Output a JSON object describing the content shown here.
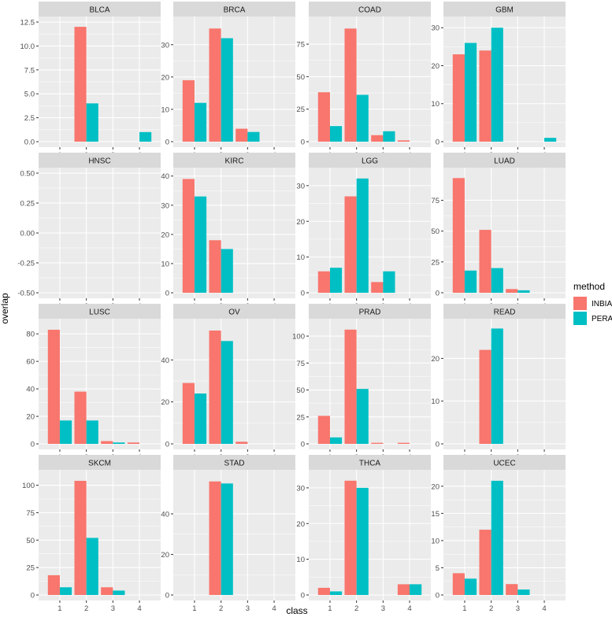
{
  "chart_data": {
    "type": "bar",
    "layout": "facet-grid 4x4",
    "xlabel": "class",
    "ylabel": "overlap",
    "categories": [
      "1",
      "2",
      "3",
      "4"
    ],
    "legend": {
      "title": "method",
      "position": "right",
      "entries": [
        {
          "name": "INBIA",
          "color": "#F8766D"
        },
        {
          "name": "PERA",
          "color": "#00BFC4"
        }
      ]
    },
    "colors": {
      "panel_bg": "#EBEBEB",
      "strip_bg": "#D9D9D9",
      "grid": "#FFFFFF"
    },
    "facets": [
      {
        "name": "BLCA",
        "ylim": [
          0,
          12.5
        ],
        "yticks": [
          0,
          2.5,
          5,
          7.5,
          10,
          12.5
        ],
        "ytick_labels": [
          "0.0",
          "2.5",
          "5.0",
          "7.5",
          "10.0",
          "12.5"
        ],
        "series": [
          {
            "name": "INBIA",
            "values": [
              null,
              12,
              null,
              null
            ]
          },
          {
            "name": "PERA",
            "values": [
              null,
              4,
              null,
              1
            ]
          }
        ]
      },
      {
        "name": "BRCA",
        "ylim": [
          0,
          37
        ],
        "yticks": [
          0,
          10,
          20,
          30
        ],
        "ytick_labels": [
          "0",
          "10",
          "20",
          "30"
        ],
        "series": [
          {
            "name": "INBIA",
            "values": [
              19,
              35,
              4,
              null
            ]
          },
          {
            "name": "PERA",
            "values": [
              12,
              32,
              3,
              null
            ]
          }
        ]
      },
      {
        "name": "COAD",
        "ylim": [
          0,
          92
        ],
        "yticks": [
          0,
          25,
          50,
          75
        ],
        "ytick_labels": [
          "0",
          "25",
          "50",
          "75"
        ],
        "series": [
          {
            "name": "INBIA",
            "values": [
              38,
              87,
              5,
              1
            ]
          },
          {
            "name": "PERA",
            "values": [
              12,
              36,
              8,
              null
            ]
          }
        ]
      },
      {
        "name": "GBM",
        "ylim": [
          0,
          31.5
        ],
        "yticks": [
          0,
          10,
          20,
          30
        ],
        "ytick_labels": [
          "0",
          "10",
          "20",
          "30"
        ],
        "series": [
          {
            "name": "INBIA",
            "values": [
              23,
              24,
              null,
              null
            ]
          },
          {
            "name": "PERA",
            "values": [
              26,
              30,
              null,
              1
            ]
          }
        ]
      },
      {
        "name": "HNSC",
        "ylim": [
          -0.5,
          0.5
        ],
        "yticks": [
          -0.5,
          -0.25,
          0,
          0.25,
          0.5
        ],
        "ytick_labels": [
          "-0.50",
          "-0.25",
          "0.00",
          "0.25",
          "0.50"
        ],
        "series": [
          {
            "name": "INBIA",
            "values": [
              null,
              null,
              null,
              null
            ]
          },
          {
            "name": "PERA",
            "values": [
              null,
              null,
              null,
              null
            ]
          }
        ]
      },
      {
        "name": "KIRC",
        "ylim": [
          0,
          41
        ],
        "yticks": [
          0,
          10,
          20,
          30,
          40
        ],
        "ytick_labels": [
          "0",
          "10",
          "20",
          "30",
          "40"
        ],
        "series": [
          {
            "name": "INBIA",
            "values": [
              39,
              18,
              null,
              null
            ]
          },
          {
            "name": "PERA",
            "values": [
              33,
              15,
              null,
              null
            ]
          }
        ]
      },
      {
        "name": "LGG",
        "ylim": [
          0,
          33.5
        ],
        "yticks": [
          0,
          10,
          20,
          30
        ],
        "ytick_labels": [
          "0",
          "10",
          "20",
          "30"
        ],
        "series": [
          {
            "name": "INBIA",
            "values": [
              6,
              27,
              3,
              null
            ]
          },
          {
            "name": "PERA",
            "values": [
              7,
              32,
              6,
              null
            ]
          }
        ]
      },
      {
        "name": "LUAD",
        "ylim": [
          0,
          97
        ],
        "yticks": [
          0,
          25,
          50,
          75
        ],
        "ytick_labels": [
          "0",
          "25",
          "50",
          "75"
        ],
        "series": [
          {
            "name": "INBIA",
            "values": [
              93,
              51,
              3,
              null
            ]
          },
          {
            "name": "PERA",
            "values": [
              18,
              20,
              2,
              null
            ]
          }
        ]
      },
      {
        "name": "LUSC",
        "ylim": [
          0,
          87
        ],
        "yticks": [
          0,
          20,
          40,
          60,
          80
        ],
        "ytick_labels": [
          "0",
          "20",
          "40",
          "60",
          "80"
        ],
        "series": [
          {
            "name": "INBIA",
            "values": [
              83,
              38,
              2,
              1
            ]
          },
          {
            "name": "PERA",
            "values": [
              17,
              17,
              1,
              null
            ]
          }
        ]
      },
      {
        "name": "OV",
        "ylim": [
          0,
          57
        ],
        "yticks": [
          0,
          20,
          40
        ],
        "ytick_labels": [
          "0",
          "20",
          "40"
        ],
        "series": [
          {
            "name": "INBIA",
            "values": [
              29,
              54,
              1,
              null
            ]
          },
          {
            "name": "PERA",
            "values": [
              24,
              49,
              null,
              null
            ]
          }
        ]
      },
      {
        "name": "PRAD",
        "ylim": [
          0,
          111
        ],
        "yticks": [
          0,
          25,
          50,
          75,
          100
        ],
        "ytick_labels": [
          "0",
          "25",
          "50",
          "75",
          "100"
        ],
        "series": [
          {
            "name": "INBIA",
            "values": [
              26,
              106,
              1,
              1
            ]
          },
          {
            "name": "PERA",
            "values": [
              6,
              51,
              null,
              null
            ]
          }
        ]
      },
      {
        "name": "READ",
        "ylim": [
          0,
          28
        ],
        "yticks": [
          0,
          10,
          20
        ],
        "ytick_labels": [
          "0",
          "10",
          "20"
        ],
        "series": [
          {
            "name": "INBIA",
            "values": [
              null,
              22,
              null,
              null
            ]
          },
          {
            "name": "PERA",
            "values": [
              null,
              27,
              null,
              null
            ]
          }
        ]
      },
      {
        "name": "SKCM",
        "ylim": [
          0,
          109
        ],
        "yticks": [
          0,
          25,
          50,
          75,
          100
        ],
        "ytick_labels": [
          "0",
          "25",
          "50",
          "75",
          "100"
        ],
        "series": [
          {
            "name": "INBIA",
            "values": [
              18,
              104,
              7,
              null
            ]
          },
          {
            "name": "PERA",
            "values": [
              7,
              52,
              4,
              null
            ]
          }
        ]
      },
      {
        "name": "STAD",
        "ylim": [
          0,
          59
        ],
        "yticks": [
          0,
          20,
          40
        ],
        "ytick_labels": [
          "0",
          "20",
          "40"
        ],
        "series": [
          {
            "name": "INBIA",
            "values": [
              null,
              56,
              null,
              null
            ]
          },
          {
            "name": "PERA",
            "values": [
              null,
              55,
              null,
              null
            ]
          }
        ]
      },
      {
        "name": "THCA",
        "ylim": [
          0,
          33.5
        ],
        "yticks": [
          0,
          10,
          20,
          30
        ],
        "ytick_labels": [
          "0",
          "10",
          "20",
          "30"
        ],
        "series": [
          {
            "name": "INBIA",
            "values": [
              2,
              32,
              null,
              3
            ]
          },
          {
            "name": "PERA",
            "values": [
              1,
              30,
              null,
              3
            ]
          }
        ]
      },
      {
        "name": "UCEC",
        "ylim": [
          0,
          22
        ],
        "yticks": [
          0,
          5,
          10,
          15,
          20
        ],
        "ytick_labels": [
          "0",
          "5",
          "10",
          "15",
          "20"
        ],
        "series": [
          {
            "name": "INBIA",
            "values": [
              4,
              12,
              2,
              null
            ]
          },
          {
            "name": "PERA",
            "values": [
              3,
              21,
              1,
              null
            ]
          }
        ]
      }
    ]
  }
}
